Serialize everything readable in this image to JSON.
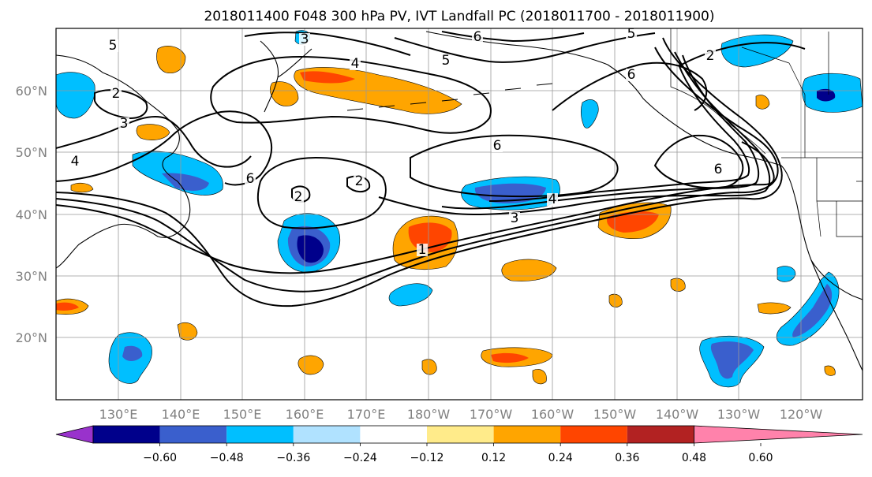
{
  "title": "2018011400 F048 300 hPa PV, IVT Landfall PC (2018011700 - 2018011900)",
  "lat_labels": [
    "60°N",
    "50°N",
    "40°N",
    "30°N",
    "20°N"
  ],
  "lon_labels": [
    "130°E",
    "140°E",
    "150°E",
    "160°E",
    "170°E",
    "180°W",
    "170°W",
    "160°W",
    "150°W",
    "140°W",
    "130°W",
    "120°W"
  ],
  "contour_labels": [
    "5",
    "3",
    "6",
    "5",
    "4",
    "5",
    "2",
    "6",
    "6",
    "2",
    "3",
    "4",
    "6",
    "2",
    "2",
    "4",
    "3",
    "1",
    "6"
  ],
  "colorbar": {
    "ticks": [
      "−0.60",
      "−0.48",
      "−0.36",
      "−0.24",
      "−0.12",
      "0.12",
      "0.24",
      "0.36",
      "0.48",
      "0.60"
    ],
    "colors": [
      "#9932cc",
      "#00008b",
      "#3a5fcd",
      "#00bfff",
      "#b0e2ff",
      "#ffffff",
      "#ffeb8a",
      "#ffa500",
      "#ff4500",
      "#b22222",
      "#ff82ab"
    ]
  }
}
